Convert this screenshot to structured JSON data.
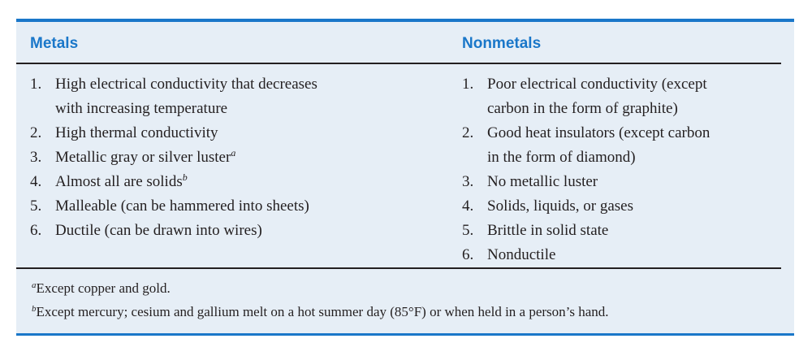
{
  "colors": {
    "accent": "#1a77c9",
    "panel_bg": "#e6eef6",
    "text": "#231f20"
  },
  "headers": {
    "metals": "Metals",
    "nonmetals": "Nonmetals"
  },
  "metals": [
    {
      "num": "1.",
      "lines": [
        "High electrical conductivity that decreases",
        "with increasing temperature"
      ],
      "sup": ""
    },
    {
      "num": "2.",
      "lines": [
        "High thermal conductivity"
      ],
      "sup": ""
    },
    {
      "num": "3.",
      "lines": [
        "Metallic gray or silver luster"
      ],
      "sup": "a"
    },
    {
      "num": "4.",
      "lines": [
        "Almost all are solids"
      ],
      "sup": "b"
    },
    {
      "num": "5.",
      "lines": [
        "Malleable (can be hammered into sheets)"
      ],
      "sup": ""
    },
    {
      "num": "6.",
      "lines": [
        "Ductile (can be drawn into wires)"
      ],
      "sup": ""
    }
  ],
  "nonmetals": [
    {
      "num": "1.",
      "lines": [
        "Poor electrical conductivity (except",
        "carbon in the form of graphite)"
      ]
    },
    {
      "num": "2.",
      "lines": [
        "Good heat insulators (except carbon",
        "in the form of diamond)"
      ]
    },
    {
      "num": "3.",
      "lines": [
        "No metallic luster"
      ]
    },
    {
      "num": "4.",
      "lines": [
        "Solids, liquids, or gases"
      ]
    },
    {
      "num": "5.",
      "lines": [
        "Brittle in solid state"
      ]
    },
    {
      "num": "6.",
      "lines": [
        "Nonductile"
      ]
    }
  ],
  "footnotes": [
    {
      "marker": "a",
      "text": "Except copper and gold."
    },
    {
      "marker": "b",
      "text": "Except mercury; cesium and gallium melt on a hot summer day (85°F) or when held in a person’s hand."
    }
  ]
}
